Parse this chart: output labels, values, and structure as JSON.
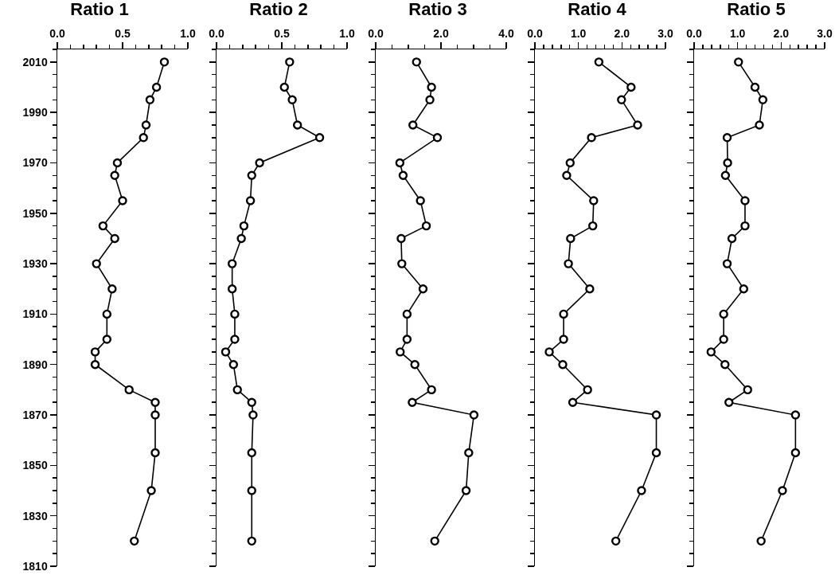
{
  "chart_data": [
    {
      "type": "line",
      "title": "Ratio 1",
      "orientation": "horizontal",
      "color": "#000000",
      "marker": "circle",
      "line_style": "solid",
      "x": [
        2010,
        2000,
        1995,
        1985,
        1980,
        1970,
        1965,
        1955,
        1945,
        1940,
        1930,
        1920,
        1910,
        1900,
        1895,
        1890,
        1880,
        1875,
        1870,
        1855,
        1840,
        1820
      ],
      "values": [
        0.82,
        0.76,
        0.71,
        0.68,
        0.66,
        0.46,
        0.44,
        0.5,
        0.35,
        0.44,
        0.3,
        0.42,
        0.38,
        0.38,
        0.29,
        0.29,
        0.55,
        0.75,
        0.75,
        0.75,
        0.72,
        0.59
      ],
      "xlim": [
        0,
        1
      ],
      "xticks": [
        {
          "value": 0,
          "label": "0.0"
        },
        {
          "value": 0.1,
          "label": null
        },
        {
          "value": 0.2,
          "label": null
        },
        {
          "value": 0.3,
          "label": null
        },
        {
          "value": 0.4,
          "label": null
        },
        0.5,
        {
          "value": 0.6,
          "label": null
        },
        {
          "value": 0.7,
          "label": null
        },
        {
          "value": 0.8,
          "label": null
        },
        {
          "value": 0.9,
          "label": null
        },
        {
          "value": 1,
          "label": "1.0"
        }
      ],
      "ylim": [
        1810,
        2015
      ],
      "yticks": [
        1810,
        {
          "value": 1815,
          "label": null
        },
        {
          "value": 1820,
          "label": null
        },
        {
          "value": 1825,
          "label": null
        },
        1830,
        {
          "value": 1835,
          "label": null
        },
        {
          "value": 1840,
          "label": null
        },
        {
          "value": 1845,
          "label": null
        },
        1850,
        {
          "value": 1855,
          "label": null
        },
        {
          "value": 1860,
          "label": null
        },
        {
          "value": 1865,
          "label": null
        },
        1870,
        {
          "value": 1875,
          "label": null
        },
        {
          "value": 1880,
          "label": null
        },
        {
          "value": 1885,
          "label": null
        },
        1890,
        {
          "value": 1895,
          "label": null
        },
        {
          "value": 1900,
          "label": null
        },
        {
          "value": 1905,
          "label": null
        },
        1910,
        {
          "value": 1915,
          "label": null
        },
        {
          "value": 1920,
          "label": null
        },
        {
          "value": 1925,
          "label": null
        },
        1930,
        {
          "value": 1935,
          "label": null
        },
        {
          "value": 1940,
          "label": null
        },
        {
          "value": 1945,
          "label": null
        },
        1950,
        {
          "value": 1955,
          "label": null
        },
        {
          "value": 1960,
          "label": null
        },
        {
          "value": 1965,
          "label": null
        },
        1970,
        {
          "value": 1975,
          "label": null
        },
        {
          "value": 1980,
          "label": null
        },
        {
          "value": 1985,
          "label": null
        },
        1990,
        {
          "value": 1995,
          "label": null
        },
        {
          "value": 2000,
          "label": null
        },
        {
          "value": 2005,
          "label": null
        },
        2010,
        {
          "value": 2015,
          "label": null
        }
      ]
    },
    {
      "type": "line",
      "title": "Ratio 2",
      "orientation": "horizontal",
      "color": "#000000",
      "marker": "circle",
      "line_style": "solid",
      "tick_labels": "x",
      "x": [
        2010,
        2000,
        1995,
        1985,
        1980,
        1970,
        1965,
        1955,
        1945,
        1940,
        1930,
        1920,
        1910,
        1900,
        1895,
        1890,
        1880,
        1875,
        1870,
        1855,
        1840,
        1820
      ],
      "values": [
        0.56,
        0.52,
        0.58,
        0.62,
        0.79,
        0.33,
        0.27,
        0.26,
        0.21,
        0.19,
        0.12,
        0.12,
        0.14,
        0.14,
        0.07,
        0.13,
        0.16,
        0.27,
        0.28,
        0.27,
        0.27,
        0.27
      ],
      "xlim": [
        0,
        1
      ],
      "xticks": [
        {
          "value": 0,
          "label": "0.0"
        },
        {
          "value": 0.1,
          "label": null
        },
        {
          "value": 0.2,
          "label": null
        },
        {
          "value": 0.3,
          "label": null
        },
        {
          "value": 0.4,
          "label": null
        },
        0.5,
        {
          "value": 0.6,
          "label": null
        },
        {
          "value": 0.7,
          "label": null
        },
        {
          "value": 0.8,
          "label": null
        },
        {
          "value": 0.9,
          "label": null
        },
        {
          "value": 1,
          "label": "1.0"
        }
      ],
      "ylim": [
        1810,
        2015
      ],
      "yticks": [
        1810,
        {
          "value": 1815,
          "label": null
        },
        {
          "value": 1820,
          "label": null
        },
        {
          "value": 1825,
          "label": null
        },
        1830,
        {
          "value": 1835,
          "label": null
        },
        {
          "value": 1840,
          "label": null
        },
        {
          "value": 1845,
          "label": null
        },
        1850,
        {
          "value": 1855,
          "label": null
        },
        {
          "value": 1860,
          "label": null
        },
        {
          "value": 1865,
          "label": null
        },
        1870,
        {
          "value": 1875,
          "label": null
        },
        {
          "value": 1880,
          "label": null
        },
        {
          "value": 1885,
          "label": null
        },
        1890,
        {
          "value": 1895,
          "label": null
        },
        {
          "value": 1900,
          "label": null
        },
        {
          "value": 1905,
          "label": null
        },
        1910,
        {
          "value": 1915,
          "label": null
        },
        {
          "value": 1920,
          "label": null
        },
        {
          "value": 1925,
          "label": null
        },
        1930,
        {
          "value": 1935,
          "label": null
        },
        {
          "value": 1940,
          "label": null
        },
        {
          "value": 1945,
          "label": null
        },
        1950,
        {
          "value": 1955,
          "label": null
        },
        {
          "value": 1960,
          "label": null
        },
        {
          "value": 1965,
          "label": null
        },
        1970,
        {
          "value": 1975,
          "label": null
        },
        {
          "value": 1980,
          "label": null
        },
        {
          "value": 1985,
          "label": null
        },
        1990,
        {
          "value": 1995,
          "label": null
        },
        {
          "value": 2000,
          "label": null
        },
        {
          "value": 2005,
          "label": null
        },
        2010,
        {
          "value": 2015,
          "label": null
        }
      ]
    },
    {
      "type": "line",
      "title": "Ratio 3",
      "orientation": "horizontal",
      "color": "#000000",
      "marker": "circle",
      "line_style": "solid",
      "tick_labels": "x",
      "x": [
        2010,
        2000,
        1995,
        1985,
        1980,
        1970,
        1965,
        1955,
        1945,
        1940,
        1930,
        1920,
        1910,
        1900,
        1895,
        1890,
        1880,
        1875,
        1870,
        1855,
        1840,
        1820
      ],
      "values": [
        1.25,
        1.71,
        1.66,
        1.14,
        1.89,
        0.74,
        0.84,
        1.37,
        1.55,
        0.78,
        0.8,
        1.45,
        0.96,
        0.96,
        0.75,
        1.2,
        1.71,
        1.12,
        3.01,
        2.85,
        2.77,
        1.81
      ],
      "xlim": [
        0,
        4
      ],
      "xticks": [
        {
          "value": 0,
          "label": "0.0"
        },
        {
          "value": 0.5,
          "label": null
        },
        {
          "value": 1,
          "label": null
        },
        {
          "value": 1.5,
          "label": null
        },
        {
          "value": 2,
          "label": "2.0"
        },
        {
          "value": 2.5,
          "label": null
        },
        {
          "value": 3,
          "label": null
        },
        {
          "value": 3.5,
          "label": null
        },
        {
          "value": 4,
          "label": "4.0"
        }
      ],
      "ylim": [
        1810,
        2015
      ],
      "yticks": [
        1810,
        {
          "value": 1815,
          "label": null
        },
        {
          "value": 1820,
          "label": null
        },
        {
          "value": 1825,
          "label": null
        },
        1830,
        {
          "value": 1835,
          "label": null
        },
        {
          "value": 1840,
          "label": null
        },
        {
          "value": 1845,
          "label": null
        },
        1850,
        {
          "value": 1855,
          "label": null
        },
        {
          "value": 1860,
          "label": null
        },
        {
          "value": 1865,
          "label": null
        },
        1870,
        {
          "value": 1875,
          "label": null
        },
        {
          "value": 1880,
          "label": null
        },
        {
          "value": 1885,
          "label": null
        },
        1890,
        {
          "value": 1895,
          "label": null
        },
        {
          "value": 1900,
          "label": null
        },
        {
          "value": 1905,
          "label": null
        },
        1910,
        {
          "value": 1915,
          "label": null
        },
        {
          "value": 1920,
          "label": null
        },
        {
          "value": 1925,
          "label": null
        },
        1930,
        {
          "value": 1935,
          "label": null
        },
        {
          "value": 1940,
          "label": null
        },
        {
          "value": 1945,
          "label": null
        },
        1950,
        {
          "value": 1955,
          "label": null
        },
        {
          "value": 1960,
          "label": null
        },
        {
          "value": 1965,
          "label": null
        },
        1970,
        {
          "value": 1975,
          "label": null
        },
        {
          "value": 1980,
          "label": null
        },
        {
          "value": 1985,
          "label": null
        },
        1990,
        {
          "value": 1995,
          "label": null
        },
        {
          "value": 2000,
          "label": null
        },
        {
          "value": 2005,
          "label": null
        },
        2010,
        {
          "value": 2015,
          "label": null
        }
      ]
    },
    {
      "type": "line",
      "title": "Ratio 4",
      "orientation": "horizontal",
      "color": "#000000",
      "marker": "circle",
      "line_style": "solid",
      "tick_labels": "x",
      "x": [
        2010,
        2000,
        1995,
        1985,
        1980,
        1970,
        1965,
        1955,
        1945,
        1940,
        1930,
        1920,
        1910,
        1900,
        1895,
        1890,
        1880,
        1875,
        1870,
        1855,
        1840,
        1820
      ],
      "values": [
        1.47,
        2.21,
        1.99,
        2.36,
        1.3,
        0.81,
        0.73,
        1.35,
        1.33,
        0.82,
        0.77,
        1.26,
        0.66,
        0.66,
        0.33,
        0.64,
        1.21,
        0.87,
        2.79,
        2.79,
        2.45,
        1.86
      ],
      "xlim": [
        0,
        3
      ],
      "xticks": [
        {
          "value": 0,
          "label": "0.0"
        },
        {
          "value": 0.2,
          "label": null
        },
        {
          "value": 0.4,
          "label": null
        },
        {
          "value": 0.6,
          "label": null
        },
        {
          "value": 0.8,
          "label": null
        },
        {
          "value": 1,
          "label": "1.0"
        },
        {
          "value": 1.2,
          "label": null
        },
        {
          "value": 1.4,
          "label": null
        },
        {
          "value": 1.6,
          "label": null
        },
        {
          "value": 1.8,
          "label": null
        },
        {
          "value": 2,
          "label": "2.0"
        },
        {
          "value": 2.2,
          "label": null
        },
        {
          "value": 2.4,
          "label": null
        },
        {
          "value": 2.6,
          "label": null
        },
        {
          "value": 2.8,
          "label": null
        },
        {
          "value": 3,
          "label": "3.0"
        }
      ],
      "ylim": [
        1810,
        2015
      ],
      "yticks": [
        1810,
        {
          "value": 1815,
          "label": null
        },
        {
          "value": 1820,
          "label": null
        },
        {
          "value": 1825,
          "label": null
        },
        1830,
        {
          "value": 1835,
          "label": null
        },
        {
          "value": 1840,
          "label": null
        },
        {
          "value": 1845,
          "label": null
        },
        1850,
        {
          "value": 1855,
          "label": null
        },
        {
          "value": 1860,
          "label": null
        },
        {
          "value": 1865,
          "label": null
        },
        1870,
        {
          "value": 1875,
          "label": null
        },
        {
          "value": 1880,
          "label": null
        },
        {
          "value": 1885,
          "label": null
        },
        1890,
        {
          "value": 1895,
          "label": null
        },
        {
          "value": 1900,
          "label": null
        },
        {
          "value": 1905,
          "label": null
        },
        1910,
        {
          "value": 1915,
          "label": null
        },
        {
          "value": 1920,
          "label": null
        },
        {
          "value": 1925,
          "label": null
        },
        1930,
        {
          "value": 1935,
          "label": null
        },
        {
          "value": 1940,
          "label": null
        },
        {
          "value": 1945,
          "label": null
        },
        1950,
        {
          "value": 1955,
          "label": null
        },
        {
          "value": 1960,
          "label": null
        },
        {
          "value": 1965,
          "label": null
        },
        1970,
        {
          "value": 1975,
          "label": null
        },
        {
          "value": 1980,
          "label": null
        },
        {
          "value": 1985,
          "label": null
        },
        1990,
        {
          "value": 1995,
          "label": null
        },
        {
          "value": 2000,
          "label": null
        },
        {
          "value": 2005,
          "label": null
        },
        2010,
        {
          "value": 2015,
          "label": null
        }
      ]
    },
    {
      "type": "line",
      "title": "Ratio 5",
      "orientation": "horizontal",
      "color": "#000000",
      "marker": "circle",
      "line_style": "solid",
      "tick_labels": "x",
      "x": [
        2010,
        2000,
        1995,
        1985,
        1980,
        1970,
        1965,
        1955,
        1945,
        1940,
        1930,
        1920,
        1910,
        1900,
        1895,
        1890,
        1880,
        1875,
        1870,
        1855,
        1840,
        1820
      ],
      "values": [
        1.02,
        1.4,
        1.58,
        1.5,
        0.76,
        0.77,
        0.72,
        1.17,
        1.17,
        0.87,
        0.76,
        1.14,
        0.68,
        0.68,
        0.39,
        0.71,
        1.23,
        0.8,
        2.33,
        2.33,
        2.03,
        1.54
      ],
      "xlim": [
        0,
        3
      ],
      "xticks": [
        {
          "value": 0,
          "label": "0.0"
        },
        {
          "value": 0.2,
          "label": null
        },
        {
          "value": 0.4,
          "label": null
        },
        {
          "value": 0.6,
          "label": null
        },
        {
          "value": 0.8,
          "label": null
        },
        {
          "value": 1,
          "label": "1.0"
        },
        {
          "value": 1.2,
          "label": null
        },
        {
          "value": 1.4,
          "label": null
        },
        {
          "value": 1.6,
          "label": null
        },
        {
          "value": 1.8,
          "label": null
        },
        {
          "value": 2,
          "label": "2.0"
        },
        {
          "value": 2.2,
          "label": null
        },
        {
          "value": 2.4,
          "label": null
        },
        {
          "value": 2.6,
          "label": null
        },
        {
          "value": 2.8,
          "label": null
        },
        {
          "value": 3,
          "label": "3.0"
        }
      ],
      "ylim": [
        1810,
        2015
      ],
      "yticks": [
        1810,
        {
          "value": 1815,
          "label": null
        },
        {
          "value": 1820,
          "label": null
        },
        {
          "value": 1825,
          "label": null
        },
        1830,
        {
          "value": 1835,
          "label": null
        },
        {
          "value": 1840,
          "label": null
        },
        {
          "value": 1845,
          "label": null
        },
        1850,
        {
          "value": 1855,
          "label": null
        },
        {
          "value": 1860,
          "label": null
        },
        {
          "value": 1865,
          "label": null
        },
        1870,
        {
          "value": 1875,
          "label": null
        },
        {
          "value": 1880,
          "label": null
        },
        {
          "value": 1885,
          "label": null
        },
        1890,
        {
          "value": 1895,
          "label": null
        },
        {
          "value": 1900,
          "label": null
        },
        {
          "value": 1905,
          "label": null
        },
        1910,
        {
          "value": 1915,
          "label": null
        },
        {
          "value": 1920,
          "label": null
        },
        {
          "value": 1925,
          "label": null
        },
        1930,
        {
          "value": 1935,
          "label": null
        },
        {
          "value": 1940,
          "label": null
        },
        {
          "value": 1945,
          "label": null
        },
        1950,
        {
          "value": 1955,
          "label": null
        },
        {
          "value": 1960,
          "label": null
        },
        {
          "value": 1965,
          "label": null
        },
        1970,
        {
          "value": 1975,
          "label": null
        },
        {
          "value": 1980,
          "label": null
        },
        {
          "value": 1985,
          "label": null
        },
        1990,
        {
          "value": 1995,
          "label": null
        },
        {
          "value": 2000,
          "label": null
        },
        {
          "value": 2005,
          "label": null
        },
        2010,
        {
          "value": 2015,
          "label": null
        }
      ]
    }
  ]
}
